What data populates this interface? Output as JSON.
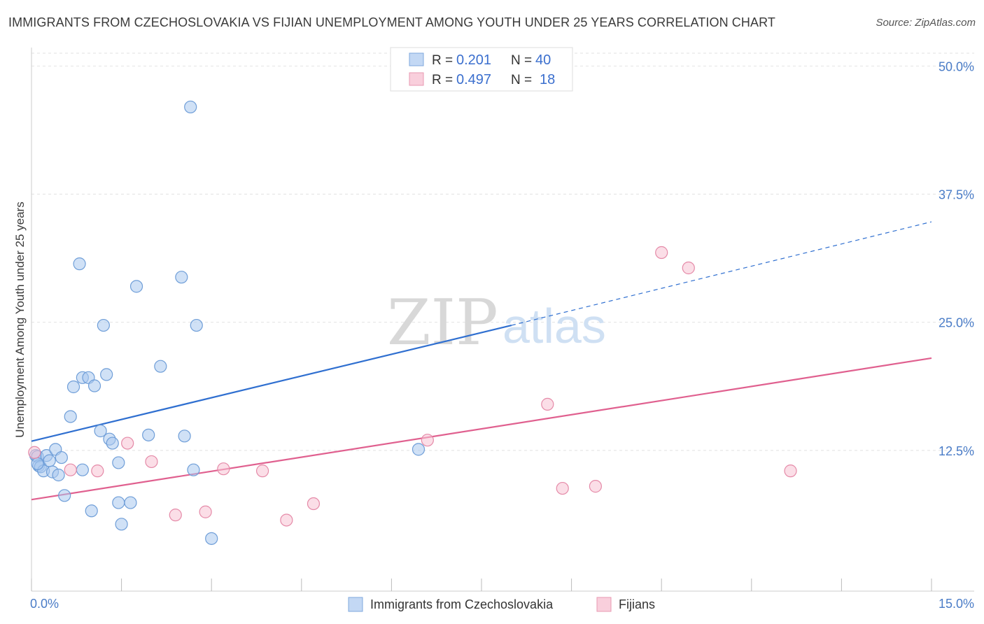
{
  "header": {
    "title": "IMMIGRANTS FROM CZECHOSLOVAKIA VS FIJIAN UNEMPLOYMENT AMONG YOUTH UNDER 25 YEARS CORRELATION CHART",
    "source": "Source: ZipAtlas.com"
  },
  "watermark": {
    "zip": "ZIP",
    "atlas": "atlas"
  },
  "legend": {
    "rows": [
      {
        "r_label": "R =",
        "r_value": "0.201",
        "n_label": "N =",
        "n_value": "40"
      },
      {
        "r_label": "R =",
        "r_value": "0.497",
        "n_label": "N =",
        "n_value": "18"
      }
    ]
  },
  "chart_data": {
    "type": "scatter",
    "title": "IMMIGRANTS FROM CZECHOSLOVAKIA VS FIJIAN UNEMPLOYMENT AMONG YOUTH UNDER 25 YEARS CORRELATION CHART",
    "xlabel": "",
    "ylabel": "Unemployment Among Youth under 25 years",
    "xlim": [
      0,
      15
    ],
    "ylim": [
      0,
      51.25
    ],
    "x_ticks": [
      {
        "value": 0,
        "label": "0.0%"
      },
      {
        "value": 15,
        "label": "15.0%"
      }
    ],
    "y_ticks": [
      {
        "value": 12.5,
        "label": "12.5%"
      },
      {
        "value": 25,
        "label": "25.0%"
      },
      {
        "value": 37.5,
        "label": "37.5%"
      },
      {
        "value": 50,
        "label": "50.0%"
      }
    ],
    "grid": true,
    "legend_position": "top-center",
    "series": [
      {
        "name": "Immigrants from Czechoslovakia",
        "color": "#a9c8ef",
        "stroke": "#6f9ed8",
        "line_color": "#2f6fd0",
        "r": 0.201,
        "n": 40,
        "trend": {
          "x0": 0,
          "y0": 13.4,
          "x1": 8.0,
          "y1": 24.7,
          "dash_to_x": 15.0,
          "dash_to_y": 34.8
        },
        "points": [
          [
            0.07,
            12.0
          ],
          [
            0.1,
            11.9
          ],
          [
            0.12,
            11.0
          ],
          [
            0.15,
            10.9
          ],
          [
            0.2,
            10.5
          ],
          [
            0.25,
            12.0
          ],
          [
            0.3,
            11.5
          ],
          [
            0.35,
            10.4
          ],
          [
            0.4,
            12.6
          ],
          [
            0.45,
            10.1
          ],
          [
            0.5,
            11.8
          ],
          [
            0.65,
            15.8
          ],
          [
            0.7,
            18.7
          ],
          [
            0.8,
            30.7
          ],
          [
            0.85,
            19.6
          ],
          [
            0.95,
            19.6
          ],
          [
            1.05,
            18.8
          ],
          [
            1.15,
            14.4
          ],
          [
            1.2,
            24.7
          ],
          [
            1.25,
            19.9
          ],
          [
            1.3,
            13.6
          ],
          [
            1.35,
            13.2
          ],
          [
            1.45,
            11.3
          ],
          [
            1.75,
            28.5
          ],
          [
            1.95,
            14.0
          ],
          [
            2.15,
            20.7
          ],
          [
            2.5,
            29.4
          ],
          [
            2.55,
            13.9
          ],
          [
            2.7,
            10.6
          ],
          [
            2.75,
            24.7
          ],
          [
            2.65,
            46.0
          ],
          [
            6.45,
            12.6
          ],
          [
            0.55,
            8.1
          ],
          [
            1.0,
            6.6
          ],
          [
            1.45,
            7.4
          ],
          [
            1.65,
            7.4
          ],
          [
            1.5,
            5.3
          ],
          [
            3.0,
            3.9
          ],
          [
            0.85,
            10.6
          ],
          [
            0.1,
            11.2
          ]
        ]
      },
      {
        "name": "Fijians",
        "color": "#f7c3d3",
        "stroke": "#e58aa8",
        "line_color": "#e0608f",
        "r": 0.497,
        "n": 18,
        "trend": {
          "x0": 0,
          "y0": 7.7,
          "x1": 15.0,
          "y1": 21.5
        },
        "points": [
          [
            0.05,
            12.3
          ],
          [
            0.65,
            10.6
          ],
          [
            1.1,
            10.5
          ],
          [
            1.6,
            13.2
          ],
          [
            2.0,
            11.4
          ],
          [
            2.4,
            6.2
          ],
          [
            2.9,
            6.5
          ],
          [
            3.2,
            10.7
          ],
          [
            3.85,
            10.5
          ],
          [
            4.25,
            5.7
          ],
          [
            4.7,
            7.3
          ],
          [
            6.6,
            13.5
          ],
          [
            8.6,
            17.0
          ],
          [
            8.85,
            8.8
          ],
          [
            9.4,
            9.0
          ],
          [
            10.5,
            31.8
          ],
          [
            10.95,
            30.3
          ],
          [
            12.65,
            10.5
          ]
        ]
      }
    ]
  }
}
